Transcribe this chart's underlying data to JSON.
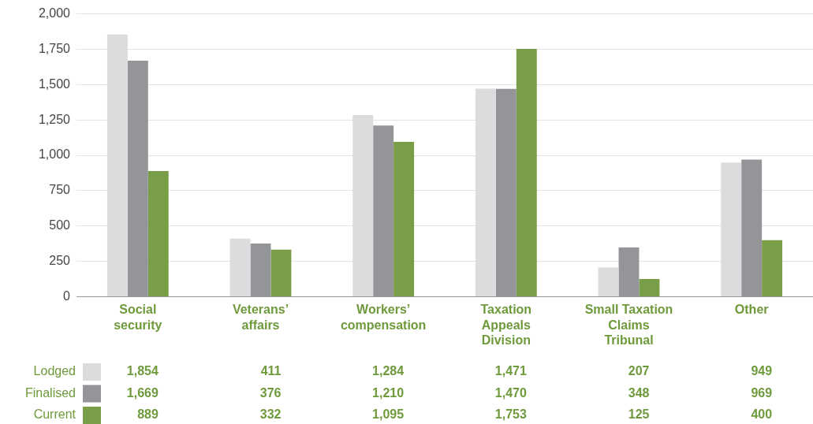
{
  "chart_data": {
    "type": "bar",
    "categories": [
      "Social security",
      "Veterans’ affairs",
      "Workers’ compensation",
      "Taxation Appeals Division",
      "Small Taxation Claims Tribunal",
      "Other"
    ],
    "series": [
      {
        "name": "Lodged",
        "color": "#dcdcde",
        "values": [
          1854,
          411,
          1284,
          1471,
          207,
          949
        ],
        "value_labels": [
          "1,854",
          "411",
          "1,284",
          "1,471",
          "207",
          "949"
        ]
      },
      {
        "name": "Finalised",
        "color": "#939598",
        "values": [
          1669,
          376,
          1210,
          1470,
          348,
          969
        ],
        "value_labels": [
          "1,669",
          "376",
          "1,210",
          "1,470",
          "348",
          "969"
        ]
      },
      {
        "name": "Current",
        "color": "#7a9e47",
        "values": [
          889,
          332,
          1095,
          1753,
          125,
          400
        ],
        "value_labels": [
          "889",
          "332",
          "1,095",
          "1,753",
          "125",
          "400"
        ]
      }
    ],
    "ylim": [
      0,
      2000
    ],
    "yticks": [
      0,
      250,
      500,
      750,
      {
        "value": 1000,
        "label": "1,000"
      },
      {
        "value": 1250,
        "label": "1,250"
      },
      {
        "value": 1500,
        "label": "1,500"
      },
      {
        "value": 1750,
        "label": "1,750"
      },
      {
        "value": 2000,
        "label": "2,000"
      }
    ],
    "grid": "y",
    "legend": "bottom"
  }
}
